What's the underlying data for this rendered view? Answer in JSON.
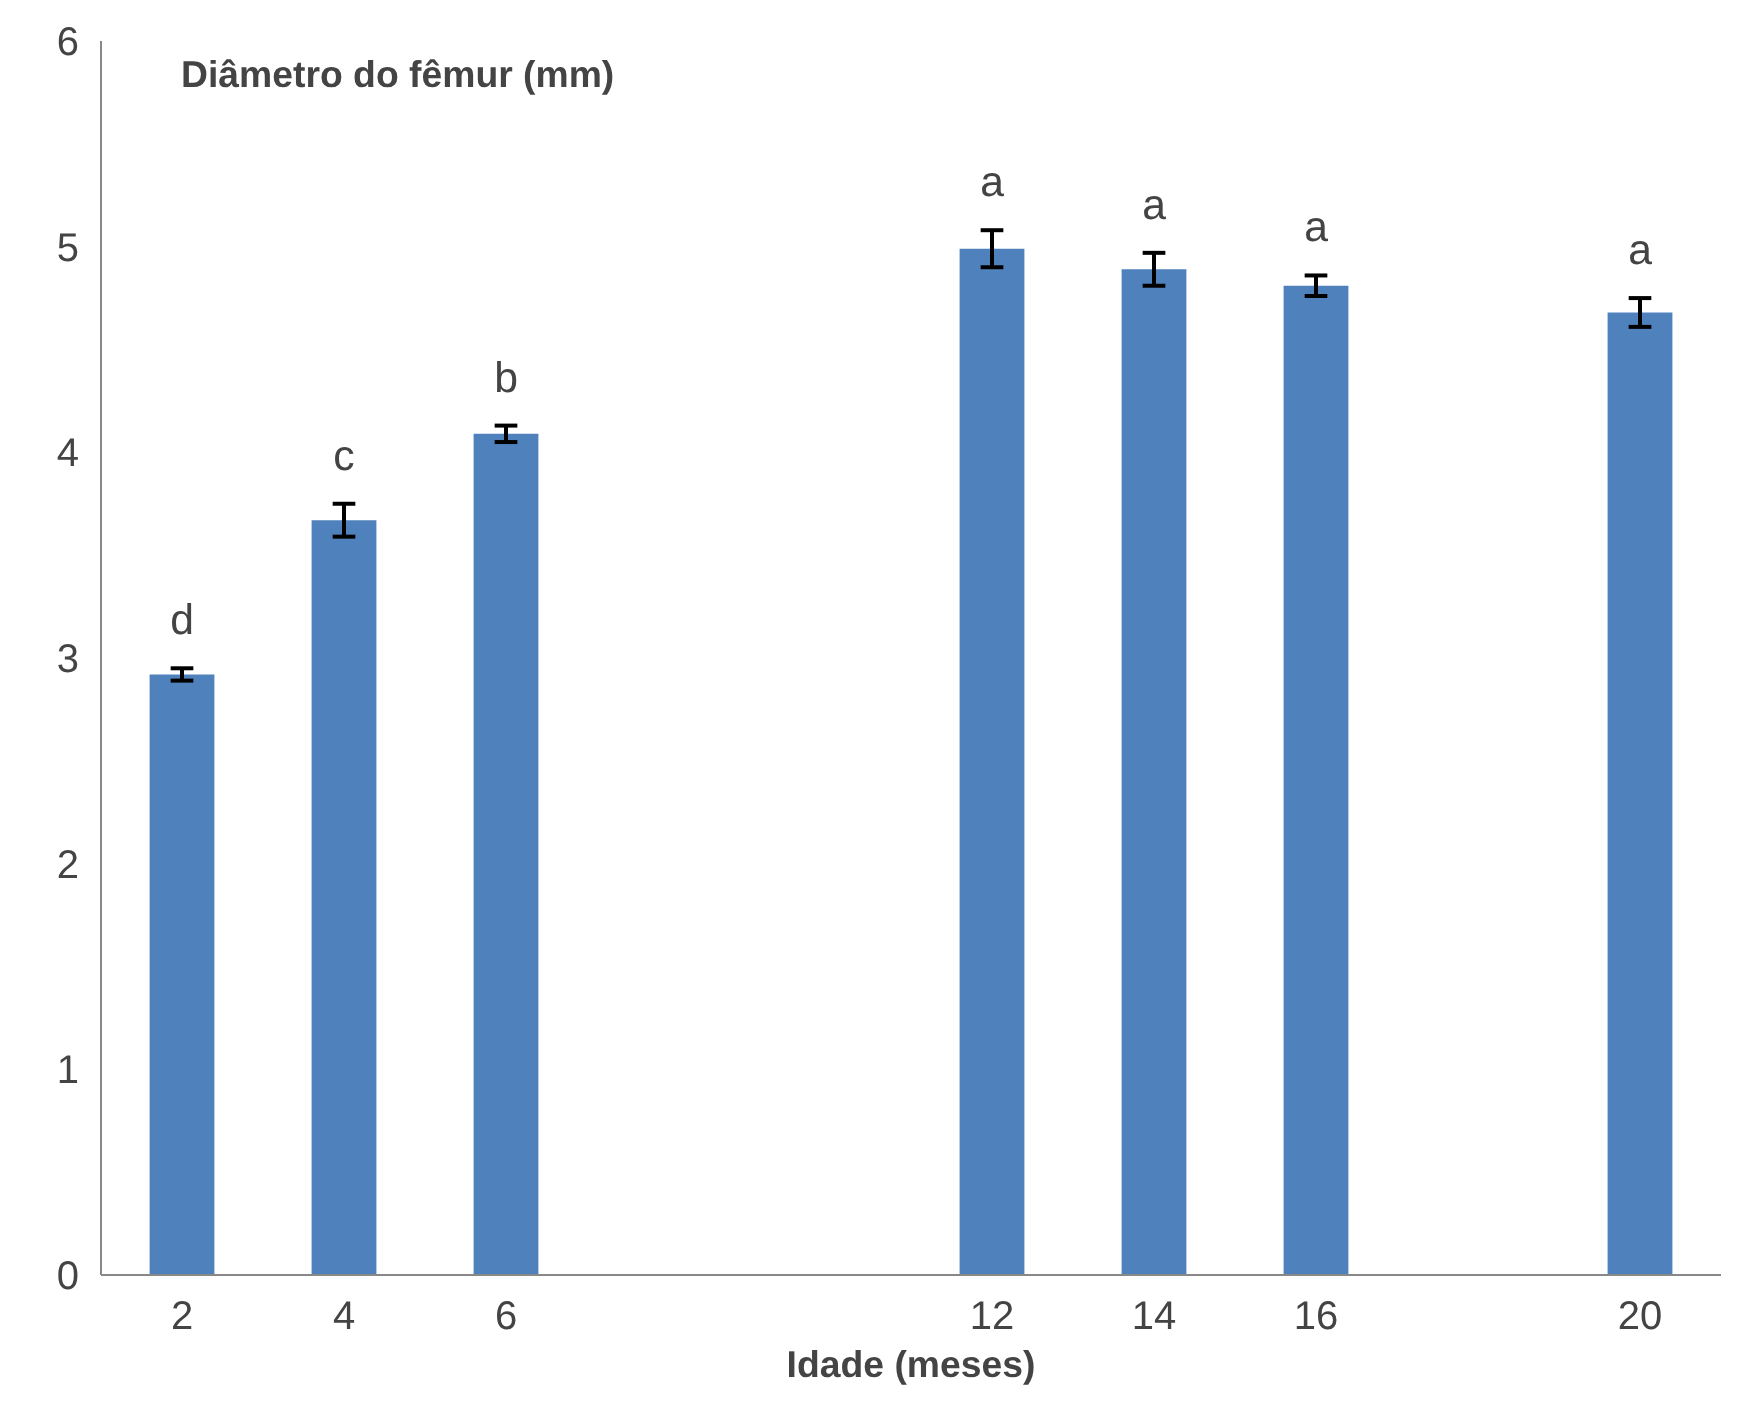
{
  "chart_data": {
    "type": "bar",
    "ylabel": "Diâmetro do fêmur (mm)",
    "xlabel": "Idade (meses)",
    "categories": [
      "2",
      "4",
      "6",
      null,
      null,
      "12",
      "14",
      "16",
      null,
      "20"
    ],
    "values": [
      2.92,
      3.67,
      4.09,
      null,
      null,
      4.99,
      4.89,
      4.81,
      null,
      4.68
    ],
    "errors": [
      0.03,
      0.08,
      0.04,
      null,
      null,
      0.09,
      0.08,
      0.05,
      null,
      0.07
    ],
    "value_labels": [
      "d",
      "c",
      "b",
      null,
      null,
      "a",
      "a",
      "a",
      null,
      "a"
    ],
    "color": "#4f81bd",
    "ylim": [
      0,
      6
    ],
    "yticks": [
      0,
      1,
      2,
      3,
      4,
      5,
      6
    ],
    "grid": false
  }
}
